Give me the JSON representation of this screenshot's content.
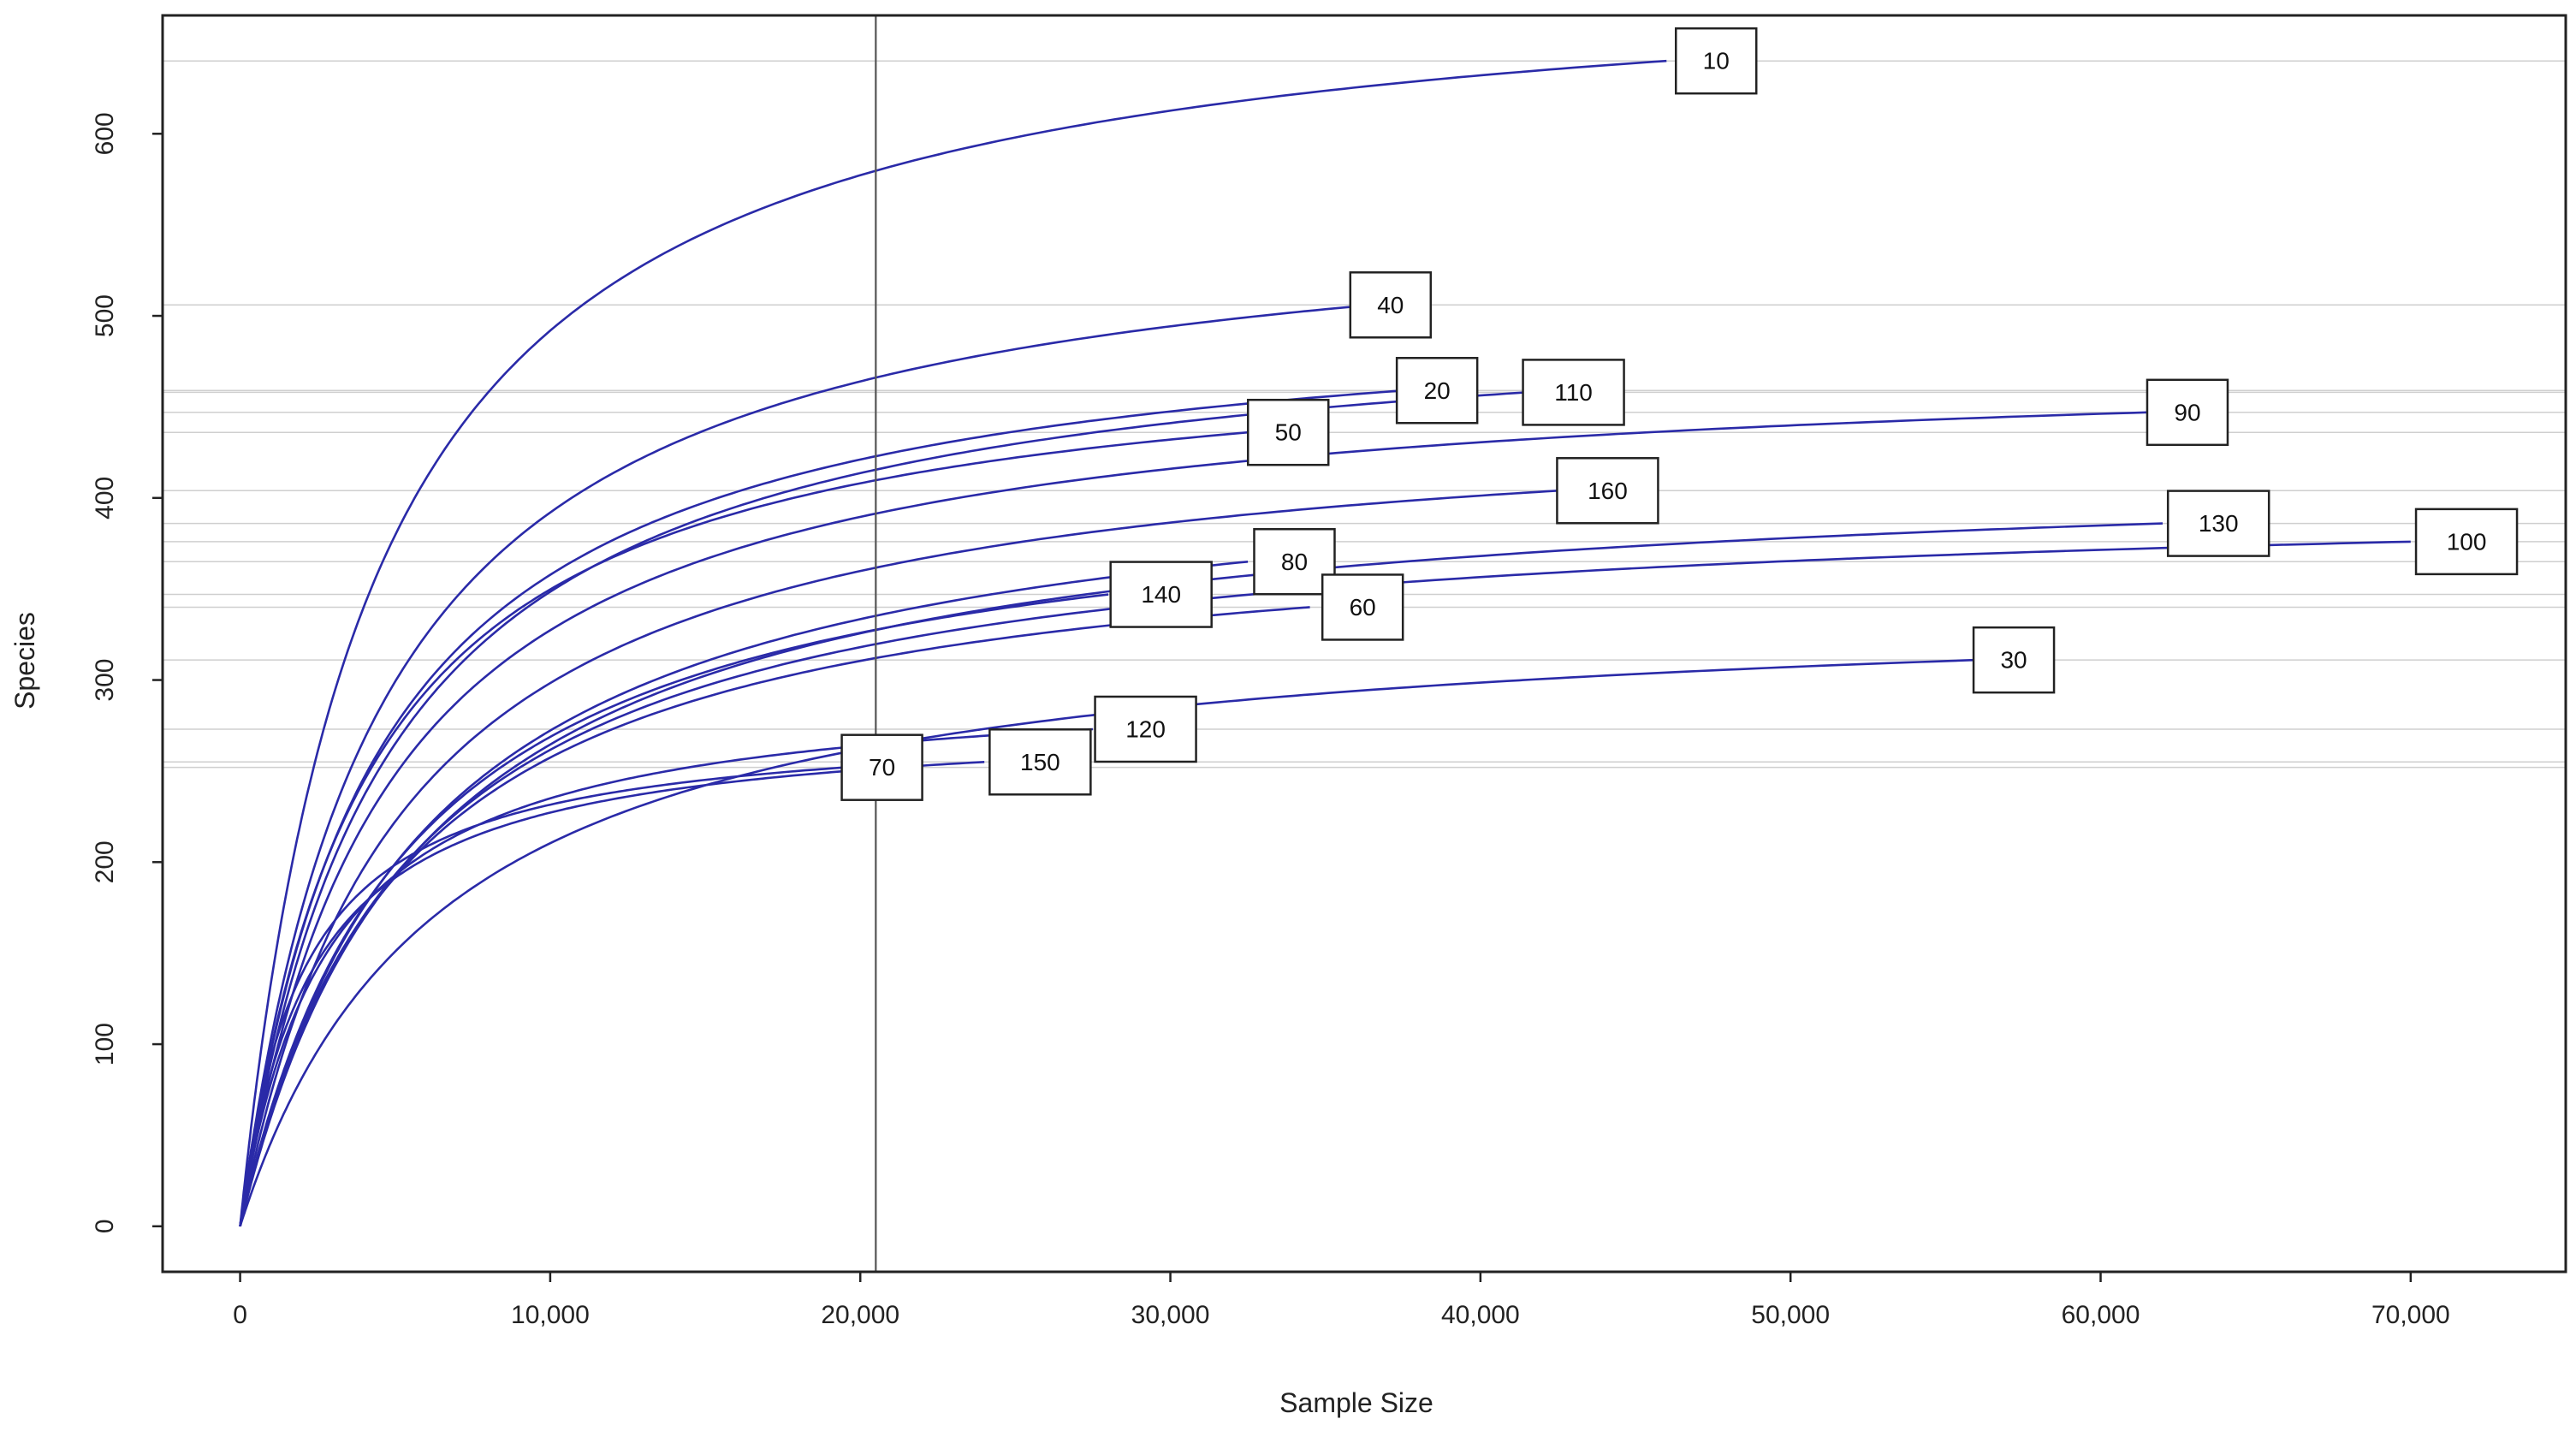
{
  "chart_data": {
    "type": "line",
    "title": "",
    "xlabel": "Sample Size",
    "ylabel": "Species",
    "xlim": [
      -2500,
      75000
    ],
    "ylim": [
      -25,
      665
    ],
    "xticks": [
      0,
      10000,
      20000,
      30000,
      40000,
      50000,
      60000,
      70000
    ],
    "xtick_labels": [
      "0",
      "10,000",
      "20,000",
      "30,000",
      "40,000",
      "50,000",
      "60,000",
      "70,000"
    ],
    "yticks": [
      0,
      100,
      200,
      300,
      400,
      500,
      600
    ],
    "ytick_labels": [
      "0",
      "100",
      "200",
      "300",
      "400",
      "500",
      "600"
    ],
    "reference_x": 20500,
    "curve_color": "#2a2aa8",
    "series": [
      {
        "name": "10",
        "asymptote": 640,
        "max_x": 46000,
        "k": 4200
      },
      {
        "name": "40",
        "asymptote": 506,
        "max_x": 36500,
        "k": 4500
      },
      {
        "name": "20",
        "asymptote": 459,
        "max_x": 37500,
        "k": 4300
      },
      {
        "name": "110",
        "asymptote": 458,
        "max_x": 41500,
        "k": 4600
      },
      {
        "name": "90",
        "asymptote": 447,
        "max_x": 61500,
        "k": 4700
      },
      {
        "name": "50",
        "asymptote": 436,
        "max_x": 32500,
        "k": 4000
      },
      {
        "name": "160",
        "asymptote": 404,
        "max_x": 42500,
        "k": 5200
      },
      {
        "name": "130",
        "asymptote": 386,
        "max_x": 62000,
        "k": 6000
      },
      {
        "name": "100",
        "asymptote": 376,
        "max_x": 70000,
        "k": 5500
      },
      {
        "name": "80",
        "asymptote": 365,
        "max_x": 32500,
        "k": 5800
      },
      {
        "name": "140",
        "asymptote": 347,
        "max_x": 28000,
        "k": 5400
      },
      {
        "name": "60",
        "asymptote": 340,
        "max_x": 34500,
        "k": 5200
      },
      {
        "name": "30",
        "asymptote": 311,
        "max_x": 56000,
        "k": 6500
      },
      {
        "name": "120",
        "asymptote": 273,
        "max_x": 27500,
        "k": 2800
      },
      {
        "name": "150",
        "asymptote": 255,
        "max_x": 24000,
        "k": 2300
      },
      {
        "name": "70",
        "asymptote": 252,
        "max_x": 19500,
        "k": 2000
      }
    ],
    "labels": [
      {
        "name": "10",
        "x": 47600,
        "y": 640
      },
      {
        "name": "40",
        "x": 37100,
        "y": 506
      },
      {
        "name": "20",
        "x": 38600,
        "y": 459
      },
      {
        "name": "110",
        "x": 43000,
        "y": 458
      },
      {
        "name": "90",
        "x": 62800,
        "y": 447
      },
      {
        "name": "50",
        "x": 33800,
        "y": 436
      },
      {
        "name": "160",
        "x": 44100,
        "y": 404
      },
      {
        "name": "130",
        "x": 63800,
        "y": 386
      },
      {
        "name": "100",
        "x": 71800,
        "y": 376
      },
      {
        "name": "80",
        "x": 34000,
        "y": 365
      },
      {
        "name": "140",
        "x": 29700,
        "y": 347
      },
      {
        "name": "60",
        "x": 36200,
        "y": 340
      },
      {
        "name": "30",
        "x": 57200,
        "y": 311
      },
      {
        "name": "120",
        "x": 29200,
        "y": 273
      },
      {
        "name": "150",
        "x": 25800,
        "y": 255
      },
      {
        "name": "70",
        "x": 20700,
        "y": 252
      }
    ]
  }
}
